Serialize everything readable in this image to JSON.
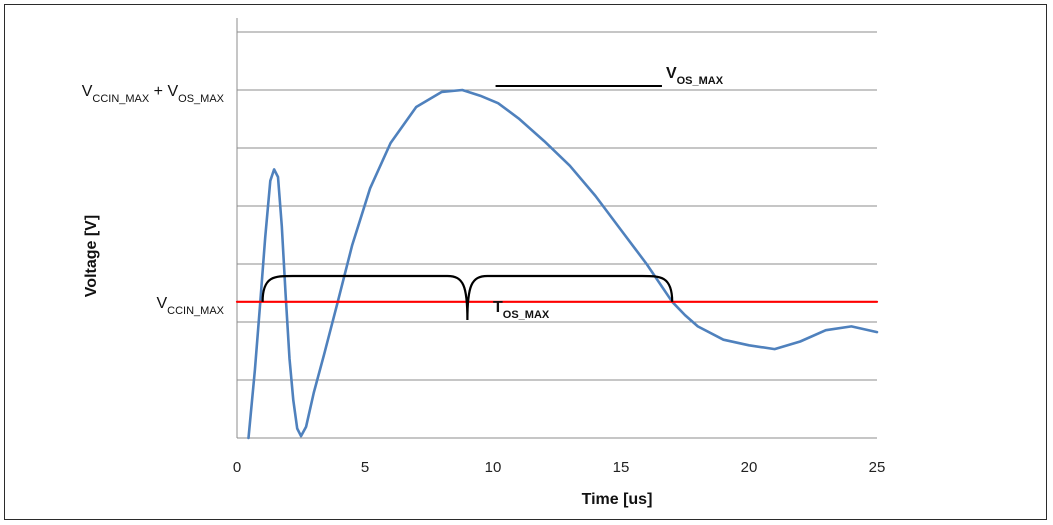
{
  "chart_data": {
    "type": "line",
    "xlabel": "Time [us]",
    "ylabel": "Voltage [V]",
    "xlim": [
      0,
      25
    ],
    "x_ticks": [
      "0",
      "5",
      "10",
      "15",
      "20",
      "25"
    ],
    "grid": "horizontal",
    "y_level_labels": {
      "overshoot_max": {
        "parts": [
          [
            "V",
            ""
          ],
          [
            "CCIN_MAX",
            "sub"
          ],
          [
            " + V",
            ""
          ],
          [
            "OS_MAX",
            "sub"
          ]
        ]
      },
      "vccin_max": {
        "parts": [
          [
            "V",
            ""
          ],
          [
            "CCIN_MAX",
            "sub"
          ]
        ]
      }
    },
    "series": [
      {
        "color": "#4f81bd",
        "x": [
          0.45,
          0.7,
          0.9,
          1.1,
          1.3,
          1.45,
          1.6,
          1.75,
          1.9,
          2.05,
          2.2,
          2.35,
          2.5,
          2.7,
          3.0,
          3.4,
          3.9,
          4.5,
          5.2,
          6.0,
          7.0,
          8.0,
          8.8,
          9.5,
          10.2,
          11.0,
          12.0,
          13.0,
          14.0,
          15.0,
          16.0,
          17.0,
          17.5,
          18.0,
          19.0,
          20.0,
          21.0,
          22.0,
          23.0,
          24.0,
          25.0
        ],
        "y": [
          0.0,
          1.8,
          3.5,
          5.3,
          6.8,
          7.1,
          6.9,
          5.6,
          3.8,
          2.1,
          1.0,
          0.25,
          0.05,
          0.3,
          1.2,
          2.2,
          3.5,
          5.1,
          6.6,
          7.8,
          8.75,
          9.15,
          9.2,
          9.05,
          8.85,
          8.45,
          7.85,
          7.2,
          6.4,
          5.5,
          4.6,
          3.6,
          3.25,
          2.95,
          2.6,
          2.45,
          2.35,
          2.55,
          2.85,
          2.95,
          2.8
        ]
      },
      {
        "color": "#ff0000",
        "x": [
          0,
          25
        ],
        "y": [
          3.6,
          3.6
        ]
      }
    ],
    "annotations": {
      "vos_label": {
        "parts": [
          [
            "V",
            ""
          ],
          [
            "OS_MAX",
            "sub"
          ]
        ]
      },
      "tos_label": {
        "parts": [
          [
            "T",
            ""
          ],
          [
            "OS_MAX",
            "sub"
          ]
        ]
      },
      "tos_range": [
        1.0,
        17.0
      ],
      "vos_line": [
        10.1,
        16.6
      ]
    }
  }
}
